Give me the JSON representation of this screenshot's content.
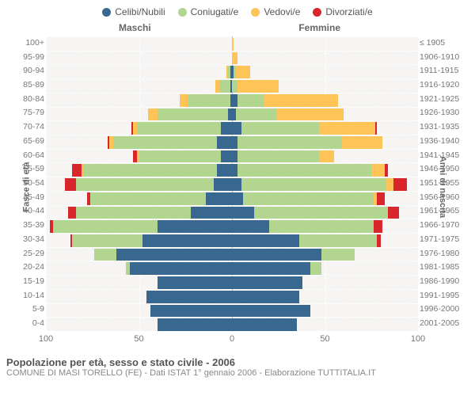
{
  "legend": [
    {
      "label": "Celibi/Nubili",
      "color": "#386890"
    },
    {
      "label": "Coniugati/e",
      "color": "#b2d58f"
    },
    {
      "label": "Vedovi/e",
      "color": "#fec458"
    },
    {
      "label": "Divorziati/e",
      "color": "#d8262c"
    }
  ],
  "header_male": "Maschi",
  "header_female": "Femmine",
  "axis_left": "Fasce di età",
  "axis_right": "Anni di nascita",
  "xmax": 100,
  "xticks": [
    100,
    50,
    0,
    50,
    100
  ],
  "footer_title": "Popolazione per età, sesso e stato civile - 2006",
  "footer_sub": "COMUNE DI MASI TORELLO (FE) - Dati ISTAT 1° gennaio 2006 - Elaborazione TUTTITALIA.IT",
  "rows": [
    {
      "age": "100+",
      "birth": "≤ 1905",
      "m": [
        0,
        0,
        0,
        0
      ],
      "f": [
        0,
        0,
        1,
        0
      ]
    },
    {
      "age": "95-99",
      "birth": "1906-1910",
      "m": [
        0,
        0,
        0,
        0
      ],
      "f": [
        0,
        0,
        3,
        0
      ]
    },
    {
      "age": "90-94",
      "birth": "1911-1915",
      "m": [
        1,
        1,
        1,
        0
      ],
      "f": [
        1,
        1,
        8,
        0
      ]
    },
    {
      "age": "85-89",
      "birth": "1916-1920",
      "m": [
        1,
        6,
        2,
        0
      ],
      "f": [
        0,
        3,
        22,
        0
      ]
    },
    {
      "age": "80-84",
      "birth": "1921-1925",
      "m": [
        1,
        23,
        4,
        0
      ],
      "f": [
        3,
        14,
        40,
        0
      ]
    },
    {
      "age": "75-79",
      "birth": "1926-1930",
      "m": [
        2,
        38,
        5,
        0
      ],
      "f": [
        2,
        22,
        36,
        0
      ]
    },
    {
      "age": "70-74",
      "birth": "1931-1935",
      "m": [
        6,
        45,
        2,
        1
      ],
      "f": [
        5,
        42,
        30,
        1
      ]
    },
    {
      "age": "65-69",
      "birth": "1936-1940",
      "m": [
        8,
        56,
        2,
        1
      ],
      "f": [
        3,
        56,
        22,
        0
      ]
    },
    {
      "age": "60-64",
      "birth": "1941-1945",
      "m": [
        6,
        44,
        1,
        2
      ],
      "f": [
        3,
        44,
        8,
        0
      ]
    },
    {
      "age": "55-59",
      "birth": "1946-1950",
      "m": [
        8,
        72,
        1,
        5
      ],
      "f": [
        3,
        72,
        7,
        2
      ]
    },
    {
      "age": "50-54",
      "birth": "1951-1955",
      "m": [
        10,
        74,
        0,
        6
      ],
      "f": [
        5,
        78,
        4,
        7
      ]
    },
    {
      "age": "45-49",
      "birth": "1956-1960",
      "m": [
        14,
        62,
        0,
        2
      ],
      "f": [
        6,
        70,
        2,
        4
      ]
    },
    {
      "age": "40-44",
      "birth": "1961-1965",
      "m": [
        22,
        62,
        0,
        4
      ],
      "f": [
        12,
        72,
        0,
        6
      ]
    },
    {
      "age": "35-39",
      "birth": "1966-1970",
      "m": [
        40,
        56,
        0,
        2
      ],
      "f": [
        20,
        56,
        0,
        5
      ]
    },
    {
      "age": "30-34",
      "birth": "1971-1975",
      "m": [
        48,
        38,
        0,
        1
      ],
      "f": [
        36,
        42,
        0,
        2
      ]
    },
    {
      "age": "25-29",
      "birth": "1976-1980",
      "m": [
        62,
        12,
        0,
        0
      ],
      "f": [
        48,
        18,
        0,
        0
      ]
    },
    {
      "age": "20-24",
      "birth": "1981-1985",
      "m": [
        55,
        2,
        0,
        0
      ],
      "f": [
        42,
        6,
        0,
        0
      ]
    },
    {
      "age": "15-19",
      "birth": "1986-1990",
      "m": [
        40,
        0,
        0,
        0
      ],
      "f": [
        38,
        0,
        0,
        0
      ]
    },
    {
      "age": "10-14",
      "birth": "1991-1995",
      "m": [
        46,
        0,
        0,
        0
      ],
      "f": [
        36,
        0,
        0,
        0
      ]
    },
    {
      "age": "5-9",
      "birth": "1996-2000",
      "m": [
        44,
        0,
        0,
        0
      ],
      "f": [
        42,
        0,
        0,
        0
      ]
    },
    {
      "age": "0-4",
      "birth": "2001-2005",
      "m": [
        40,
        0,
        0,
        0
      ],
      "f": [
        35,
        0,
        0,
        0
      ]
    }
  ]
}
